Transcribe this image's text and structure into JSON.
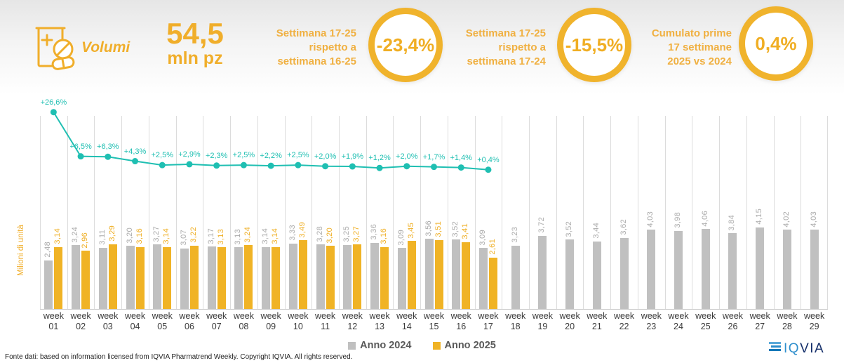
{
  "header": {
    "brand": {
      "label": "Volumi"
    },
    "total": {
      "value": "54,5",
      "unit": "mln pz"
    },
    "kpis": [
      {
        "label_lines": [
          "Settimana 17-25",
          "rispetto a",
          "settimana 16-25"
        ],
        "value": "-23,4%"
      },
      {
        "label_lines": [
          "Settimana 17-25",
          "rispetto a",
          "settimana 17-24"
        ],
        "value": "-15,5%"
      },
      {
        "label_lines": [
          "Cumulato prime",
          "17 settimane",
          "2025 vs 2024"
        ],
        "value": "0,4%"
      }
    ]
  },
  "chart_data": {
    "type": "bar",
    "title": "",
    "ylabel": "Milioni di unità",
    "x_label_word": "week",
    "categories": [
      "01",
      "02",
      "03",
      "04",
      "05",
      "06",
      "07",
      "08",
      "09",
      "10",
      "11",
      "12",
      "13",
      "14",
      "15",
      "16",
      "17",
      "18",
      "19",
      "20",
      "21",
      "22",
      "23",
      "24",
      "25",
      "26",
      "27",
      "28",
      "29"
    ],
    "grid": "vertical",
    "legend_position": "bottom",
    "ylim": [
      0,
      4.5
    ],
    "series": [
      {
        "name": "Anno 2024",
        "color": "#C0C0C0",
        "values": [
          2.48,
          3.24,
          3.11,
          3.2,
          3.27,
          3.07,
          3.17,
          3.13,
          3.14,
          3.33,
          3.28,
          3.25,
          3.36,
          3.09,
          3.56,
          3.52,
          3.09,
          3.23,
          3.72,
          3.52,
          3.44,
          3.62,
          4.03,
          3.98,
          4.06,
          3.84,
          4.15,
          4.02,
          4.03
        ],
        "value_labels": [
          "2,48",
          "3,24",
          "3,11",
          "3,20",
          "3,27",
          "3,07",
          "3,17",
          "3,13",
          "3,14",
          "3,33",
          "3,28",
          "3,25",
          "3,36",
          "3,09",
          "3,56",
          "3,52",
          "3,09",
          "3,23",
          "3,72",
          "3,52",
          "3,44",
          "3,62",
          "4,03",
          "3,98",
          "4,06",
          "3,84",
          "4,15",
          "4,02",
          "4,03"
        ]
      },
      {
        "name": "Anno 2025",
        "color": "#F0B325",
        "values": [
          3.14,
          2.96,
          3.29,
          3.16,
          3.14,
          3.22,
          3.13,
          3.24,
          3.14,
          3.49,
          3.2,
          3.27,
          3.16,
          3.45,
          3.51,
          3.41,
          2.61,
          null,
          null,
          null,
          null,
          null,
          null,
          null,
          null,
          null,
          null,
          null,
          null
        ],
        "value_labels": [
          "3,14",
          "2,96",
          "3,29",
          "3,16",
          "3,14",
          "3,22",
          "3,13",
          "3,24",
          "3,14",
          "3,49",
          "3,20",
          "3,27",
          "3,16",
          "3,45",
          "3,51",
          "3,41",
          "2,61"
        ]
      }
    ],
    "line_series": {
      "color": "#1FBFB2",
      "values": [
        26.6,
        6.5,
        6.3,
        4.3,
        2.5,
        2.9,
        2.3,
        2.5,
        2.2,
        2.5,
        2.0,
        1.9,
        1.2,
        2.0,
        1.7,
        1.4,
        0.4
      ],
      "labels": [
        "+26,6%",
        "+6,5%",
        "+6,3%",
        "+4,3%",
        "+2,5%",
        "+2,9%",
        "+2,3%",
        "+2,5%",
        "+2,2%",
        "+2,5%",
        "+2,0%",
        "+1,9%",
        "+1,2%",
        "+2,0%",
        "+1,7%",
        "+1,4%",
        "+0,4%"
      ]
    }
  },
  "legend": {
    "items": [
      {
        "label": "Anno 2024",
        "color": "#C0C0C0"
      },
      {
        "label": "Anno 2025",
        "color": "#F0B325"
      }
    ]
  },
  "footer": {
    "source": "Fonte dati: based on information licensed from IQVIA Pharmatrend Weekly. Copyright IQVIA. All rights reserved.",
    "logo": "IQVIA"
  }
}
